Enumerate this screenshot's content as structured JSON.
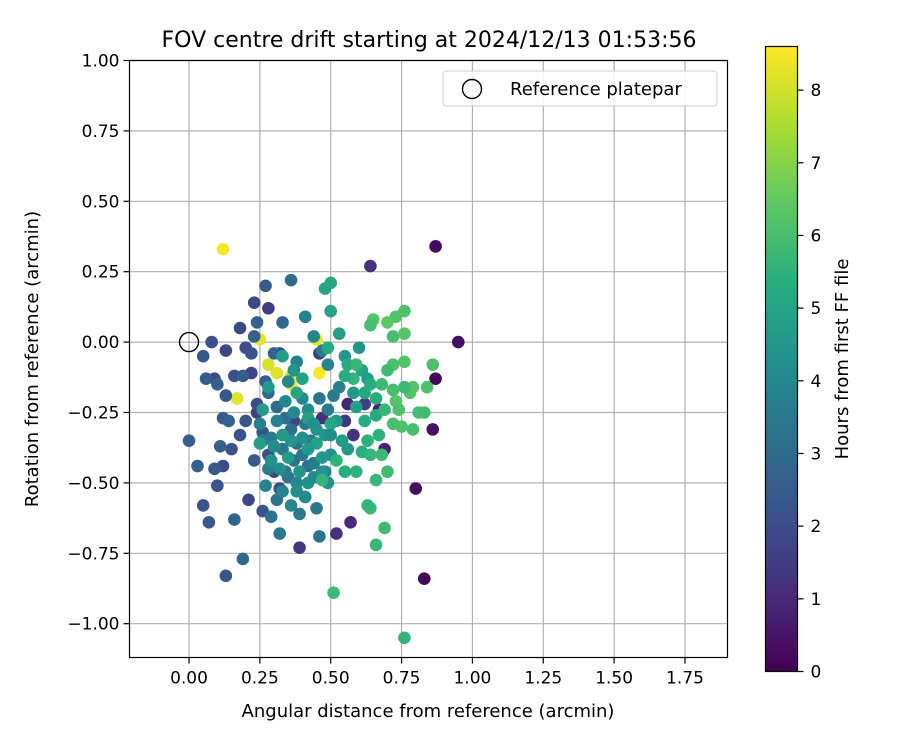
{
  "chart_data": {
    "type": "scatter",
    "title": "FOV centre drift starting at 2024/12/13 01:53:56",
    "xlabel": "Angular distance from reference (arcmin)",
    "ylabel": "Rotation from reference (arcmin)",
    "xlim": [
      -0.21,
      1.9
    ],
    "ylim": [
      -1.12,
      1.0
    ],
    "xticks": [
      "0.00",
      "0.25",
      "0.50",
      "0.75",
      "1.00",
      "1.25",
      "1.50",
      "1.75"
    ],
    "yticks": [
      "1.00",
      "0.75",
      "0.50",
      "0.25",
      "0.00",
      "−0.25",
      "−0.50",
      "−0.75",
      "−1.00"
    ],
    "grid": true,
    "legend": {
      "placement": "top-right",
      "label": "Reference platepar"
    },
    "reference_point": {
      "x": 0.0,
      "y": 0.0
    },
    "colorbar": {
      "label": "Hours from first FF file",
      "range": [
        0,
        8.6
      ],
      "ticks": [
        "0",
        "1",
        "2",
        "3",
        "4",
        "5",
        "6",
        "7",
        "8"
      ],
      "colormap": "viridis"
    },
    "points": [
      [
        0.12,
        0.33,
        8.5
      ],
      [
        0.25,
        0.01,
        8.3
      ],
      [
        0.45,
        0.01,
        8.4
      ],
      [
        0.31,
        -0.11,
        8.2
      ],
      [
        0.36,
        -0.12,
        8.3
      ],
      [
        0.36,
        -0.15,
        8.4
      ],
      [
        0.46,
        -0.11,
        8.5
      ],
      [
        0.17,
        -0.2,
        8.2
      ],
      [
        0.28,
        -0.08,
        8.1
      ],
      [
        0.87,
        0.34,
        0.2
      ],
      [
        0.95,
        0.0,
        0.3
      ],
      [
        0.87,
        -0.13,
        0.2
      ],
      [
        0.86,
        -0.31,
        0.4
      ],
      [
        0.8,
        -0.52,
        0.3
      ],
      [
        0.83,
        -0.84,
        0.2
      ],
      [
        0.64,
        0.27,
        1.2
      ],
      [
        0.69,
        -0.38,
        0.8
      ],
      [
        0.57,
        -0.64,
        1.0
      ],
      [
        0.52,
        -0.68,
        1.2
      ],
      [
        0.39,
        -0.73,
        1.3
      ],
      [
        0.47,
        -0.27,
        1.1
      ],
      [
        0.55,
        -0.28,
        1.4
      ],
      [
        0.58,
        -0.33,
        1.2
      ],
      [
        0.62,
        -0.22,
        1.6
      ],
      [
        0.56,
        -0.22,
        0.9
      ],
      [
        0.67,
        -0.24,
        0.7
      ],
      [
        0.46,
        -0.04,
        1.5
      ],
      [
        0.37,
        -0.28,
        1.7
      ],
      [
        0.32,
        -0.04,
        1.9
      ],
      [
        0.21,
        -0.56,
        1.8
      ],
      [
        0.24,
        -0.25,
        1.6
      ],
      [
        0.28,
        0.12,
        1.5
      ],
      [
        0.23,
        0.14,
        1.8
      ],
      [
        0.18,
        0.05,
        1.9
      ],
      [
        0.08,
        0.0,
        2.0
      ],
      [
        0.09,
        -0.13,
        1.9
      ],
      [
        0.13,
        -0.03,
        1.8
      ],
      [
        0.16,
        -0.12,
        2.1
      ],
      [
        0.2,
        -0.02,
        2.0
      ],
      [
        0.22,
        -0.11,
        1.7
      ],
      [
        0.24,
        -0.22,
        2.0
      ],
      [
        0.26,
        -0.32,
        2.2
      ],
      [
        0.28,
        -0.4,
        2.1
      ],
      [
        0.3,
        -0.46,
        1.9
      ],
      [
        0.32,
        -0.52,
        2.0
      ],
      [
        0.26,
        -0.6,
        2.3
      ],
      [
        0.23,
        -0.42,
        2.4
      ],
      [
        0.2,
        -0.28,
        2.3
      ],
      [
        0.18,
        -0.33,
        2.2
      ],
      [
        0.15,
        -0.38,
        2.1
      ],
      [
        0.12,
        -0.44,
        2.0
      ],
      [
        0.1,
        -0.51,
        2.2
      ],
      [
        0.05,
        -0.58,
        2.3
      ],
      [
        0.07,
        -0.64,
        2.4
      ],
      [
        0.13,
        -0.83,
        2.3
      ],
      [
        0.19,
        -0.77,
        2.9
      ],
      [
        0.16,
        -0.63,
        2.8
      ],
      [
        0.03,
        -0.44,
        2.6
      ],
      [
        0.0,
        -0.35,
        2.5
      ],
      [
        0.09,
        -0.45,
        2.4
      ],
      [
        0.11,
        -0.37,
        2.6
      ],
      [
        0.12,
        -0.27,
        2.5
      ],
      [
        0.14,
        -0.28,
        2.7
      ],
      [
        0.05,
        -0.05,
        2.4
      ],
      [
        0.06,
        -0.13,
        2.5
      ],
      [
        0.1,
        -0.15,
        2.6
      ],
      [
        0.13,
        -0.19,
        2.3
      ],
      [
        0.19,
        -0.12,
        2.5
      ],
      [
        0.22,
        -0.04,
        2.2
      ],
      [
        0.23,
        0.02,
        2.6
      ],
      [
        0.24,
        0.07,
        2.7
      ],
      [
        0.27,
        -0.14,
        2.6
      ],
      [
        0.3,
        -0.04,
        2.8
      ],
      [
        0.33,
        0.07,
        2.9
      ],
      [
        0.36,
        0.22,
        3.0
      ],
      [
        0.27,
        0.2,
        2.4
      ],
      [
        0.28,
        -0.18,
        2.9
      ],
      [
        0.31,
        -0.23,
        3.0
      ],
      [
        0.34,
        -0.27,
        3.1
      ],
      [
        0.36,
        -0.31,
        3.2
      ],
      [
        0.38,
        -0.36,
        3.3
      ],
      [
        0.4,
        -0.4,
        3.4
      ],
      [
        0.42,
        -0.44,
        3.1
      ],
      [
        0.35,
        -0.48,
        3.2
      ],
      [
        0.31,
        -0.56,
        3.3
      ],
      [
        0.29,
        -0.62,
        3.2
      ],
      [
        0.32,
        -0.68,
        3.4
      ],
      [
        0.39,
        -0.61,
        3.5
      ],
      [
        0.45,
        -0.59,
        3.4
      ],
      [
        0.46,
        -0.69,
        3.3
      ],
      [
        0.44,
        -0.43,
        3.6
      ],
      [
        0.48,
        -0.46,
        3.7
      ],
      [
        0.43,
        -0.35,
        3.5
      ],
      [
        0.41,
        -0.29,
        3.4
      ],
      [
        0.46,
        -0.2,
        3.3
      ],
      [
        0.49,
        -0.24,
        3.6
      ],
      [
        0.51,
        -0.19,
        3.5
      ],
      [
        0.53,
        -0.16,
        3.7
      ],
      [
        0.49,
        -0.08,
        3.8
      ],
      [
        0.47,
        -0.03,
        3.6
      ],
      [
        0.44,
        0.02,
        3.9
      ],
      [
        0.41,
        0.09,
        3.8
      ],
      [
        0.38,
        -0.07,
        3.7
      ],
      [
        0.35,
        -0.14,
        3.9
      ],
      [
        0.31,
        -0.28,
        3.8
      ],
      [
        0.26,
        -0.35,
        3.6
      ],
      [
        0.25,
        -0.29,
        3.7
      ],
      [
        0.29,
        -0.34,
        3.5
      ],
      [
        0.33,
        -0.38,
        3.4
      ],
      [
        0.37,
        -0.42,
        3.3
      ],
      [
        0.34,
        -0.46,
        3.6
      ],
      [
        0.28,
        -0.45,
        3.7
      ],
      [
        0.27,
        -0.51,
        3.8
      ],
      [
        0.33,
        -0.53,
        3.9
      ],
      [
        0.38,
        -0.5,
        4.0
      ],
      [
        0.41,
        -0.55,
        4.1
      ],
      [
        0.38,
        -0.53,
        4.2
      ],
      [
        0.36,
        -0.58,
        4.0
      ],
      [
        0.42,
        -0.5,
        4.3
      ],
      [
        0.44,
        -0.48,
        4.1
      ],
      [
        0.47,
        -0.46,
        4.4
      ],
      [
        0.49,
        -0.5,
        4.2
      ],
      [
        0.5,
        -0.4,
        4.3
      ],
      [
        0.48,
        -0.33,
        4.5
      ],
      [
        0.45,
        -0.31,
        4.4
      ],
      [
        0.42,
        -0.24,
        4.2
      ],
      [
        0.4,
        -0.2,
        4.1
      ],
      [
        0.37,
        -0.25,
        4.0
      ],
      [
        0.34,
        -0.21,
        3.9
      ],
      [
        0.4,
        -0.34,
        4.3
      ],
      [
        0.36,
        -0.35,
        4.5
      ],
      [
        0.3,
        -0.37,
        4.1
      ],
      [
        0.32,
        -0.45,
        4.2
      ],
      [
        0.29,
        -0.42,
        4.4
      ],
      [
        0.52,
        -0.28,
        4.6
      ],
      [
        0.54,
        -0.35,
        4.7
      ],
      [
        0.56,
        -0.38,
        4.5
      ],
      [
        0.58,
        -0.18,
        4.6
      ],
      [
        0.59,
        -0.23,
        4.8
      ],
      [
        0.61,
        -0.1,
        4.9
      ],
      [
        0.63,
        -0.13,
        4.7
      ],
      [
        0.6,
        -0.02,
        4.5
      ],
      [
        0.55,
        -0.05,
        4.4
      ],
      [
        0.53,
        0.03,
        4.8
      ],
      [
        0.5,
        0.11,
        4.9
      ],
      [
        0.48,
        0.19,
        5.0
      ],
      [
        0.5,
        0.21,
        5.1
      ],
      [
        0.56,
        -0.08,
        5.2
      ],
      [
        0.62,
        -0.18,
        5.1
      ],
      [
        0.64,
        -0.15,
        5.3
      ],
      [
        0.66,
        -0.2,
        5.4
      ],
      [
        0.66,
        -0.26,
        5.2
      ],
      [
        0.62,
        -0.28,
        5.3
      ],
      [
        0.63,
        -0.35,
        5.5
      ],
      [
        0.61,
        -0.39,
        5.4
      ],
      [
        0.64,
        -0.4,
        5.6
      ],
      [
        0.59,
        -0.46,
        5.5
      ],
      [
        0.55,
        -0.46,
        5.4
      ],
      [
        0.52,
        -0.42,
        5.5
      ],
      [
        0.47,
        -0.49,
        5.6
      ],
      [
        0.66,
        -0.49,
        5.7
      ],
      [
        0.68,
        -0.4,
        5.8
      ],
      [
        0.7,
        -0.46,
        5.9
      ],
      [
        0.64,
        -0.59,
        5.8
      ],
      [
        0.63,
        -0.58,
        5.6
      ],
      [
        0.69,
        -0.66,
        5.9
      ],
      [
        0.66,
        -0.72,
        5.7
      ],
      [
        0.51,
        -0.89,
        5.8
      ],
      [
        0.76,
        -1.05,
        5.6
      ],
      [
        0.67,
        -0.33,
        5.5
      ],
      [
        0.72,
        -0.29,
        6.0
      ],
      [
        0.75,
        -0.3,
        6.1
      ],
      [
        0.79,
        -0.31,
        6.0
      ],
      [
        0.73,
        -0.21,
        6.2
      ],
      [
        0.74,
        -0.24,
        6.1
      ],
      [
        0.78,
        -0.18,
        6.2
      ],
      [
        0.81,
        -0.25,
        6.0
      ],
      [
        0.83,
        -0.25,
        5.9
      ],
      [
        0.79,
        -0.16,
        6.3
      ],
      [
        0.84,
        -0.16,
        6.1
      ],
      [
        0.76,
        -0.16,
        5.8
      ],
      [
        0.72,
        -0.17,
        6.0
      ],
      [
        0.69,
        -0.24,
        5.7
      ],
      [
        0.68,
        -0.15,
        5.8
      ],
      [
        0.72,
        -0.08,
        6.1
      ],
      [
        0.76,
        -0.07,
        6.2
      ],
      [
        0.72,
        0.02,
        6.0
      ],
      [
        0.76,
        0.03,
        6.3
      ],
      [
        0.73,
        0.09,
        6.2
      ],
      [
        0.76,
        0.11,
        6.1
      ],
      [
        0.7,
        0.07,
        6.4
      ],
      [
        0.65,
        0.08,
        6.2
      ],
      [
        0.64,
        0.06,
        6.0
      ],
      [
        0.86,
        -0.08,
        6.1
      ],
      [
        0.7,
        -0.1,
        5.9
      ],
      [
        0.59,
        -0.08,
        5.7
      ],
      [
        0.58,
        -0.13,
        5.6
      ],
      [
        0.55,
        -0.12,
        5.3
      ],
      [
        0.49,
        -0.02,
        5.2
      ],
      [
        0.5,
        -0.29,
        5.0
      ],
      [
        0.45,
        -0.36,
        4.9
      ],
      [
        0.42,
        -0.27,
        4.8
      ],
      [
        0.33,
        -0.05,
        4.7
      ],
      [
        0.28,
        -0.16,
        4.6
      ],
      [
        0.26,
        -0.24,
        4.7
      ],
      [
        0.25,
        -0.36,
        4.8
      ],
      [
        0.38,
        -0.18,
        5.0
      ],
      [
        0.4,
        -0.13,
        4.9
      ],
      [
        0.37,
        -0.1,
        4.5
      ],
      [
        0.42,
        -0.38,
        4.6
      ],
      [
        0.47,
        -0.41,
        4.5
      ],
      [
        0.39,
        -0.46,
        4.4
      ],
      [
        0.35,
        -0.41,
        4.7
      ],
      [
        0.33,
        -0.33,
        4.6
      ],
      [
        0.44,
        -0.29,
        4.3
      ],
      [
        0.5,
        -0.33,
        4.2
      ]
    ]
  }
}
